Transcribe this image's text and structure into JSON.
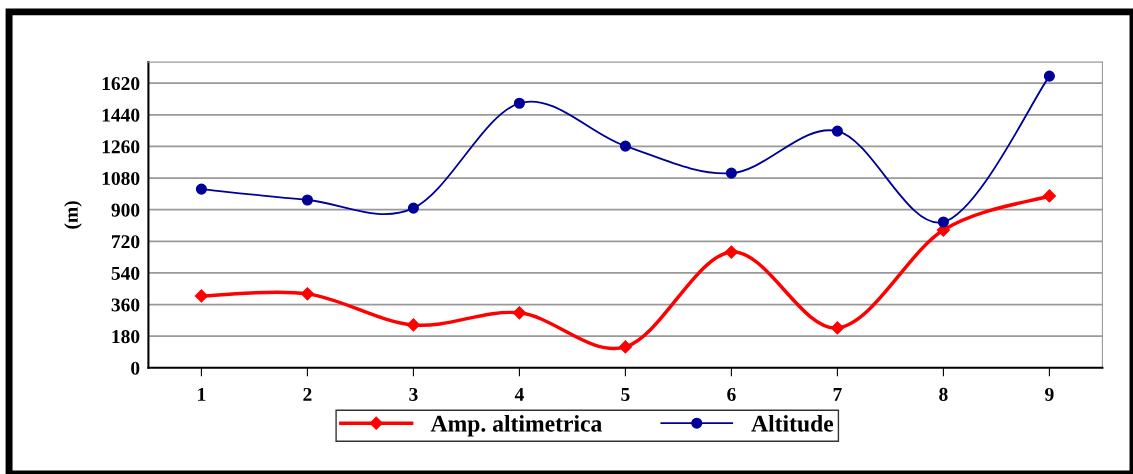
{
  "chart_data": {
    "type": "line",
    "ylabel": "(m)",
    "categories": [
      "1",
      "2",
      "3",
      "4",
      "5",
      "6",
      "7",
      "8",
      "9"
    ],
    "series": [
      {
        "name": "Amp. altimetrica",
        "color": "#ff0000",
        "marker": "diamond",
        "values": [
          409,
          421,
          244,
          313,
          119,
          659,
          227,
          784,
          978
        ]
      },
      {
        "name": "Altitude",
        "color": "#000099",
        "marker": "circle",
        "values": [
          1017,
          955,
          909,
          1506,
          1262,
          1108,
          1347,
          830,
          1660
        ]
      }
    ],
    "ylim": [
      0,
      1740
    ],
    "yticks": [
      0,
      180,
      360,
      540,
      720,
      900,
      1080,
      1260,
      1440,
      1620
    ],
    "grid": "y",
    "legend": "bottom"
  }
}
